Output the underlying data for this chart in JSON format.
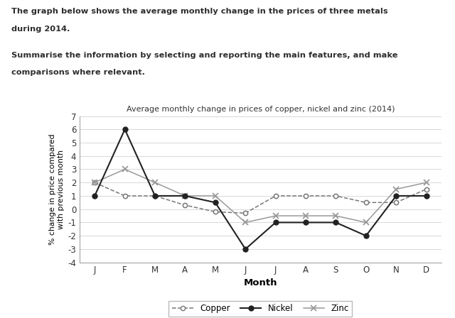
{
  "title": "Average monthly change in prices of copper, nickel and zinc (2014)",
  "xlabel": "Month",
  "ylabel": "% change in price compared\nwith previous month",
  "months": [
    "J",
    "F",
    "M",
    "A",
    "M",
    "J",
    "J",
    "A",
    "S",
    "O",
    "N",
    "D"
  ],
  "copper": [
    2.0,
    1.0,
    1.0,
    0.3,
    -0.2,
    -0.3,
    1.0,
    1.0,
    1.0,
    0.5,
    0.5,
    1.5
  ],
  "nickel": [
    1.0,
    6.0,
    1.0,
    1.0,
    0.5,
    -3.0,
    -1.0,
    -1.0,
    -1.0,
    -2.0,
    1.0,
    1.0
  ],
  "zinc": [
    2.0,
    3.0,
    2.0,
    1.0,
    1.0,
    -1.0,
    -0.5,
    -0.5,
    -0.5,
    -1.0,
    1.5,
    2.0
  ],
  "ylim": [
    -4,
    7
  ],
  "yticks": [
    -4,
    -3,
    -2,
    -1,
    0,
    1,
    2,
    3,
    4,
    5,
    6,
    7
  ],
  "header_line1": "The graph below shows the average monthly change in the prices of three metals",
  "header_line2": "during 2014.",
  "header_line3": "Summarise the information by selecting and reporting the main features, and make",
  "header_line4": "comparisons where relevant."
}
